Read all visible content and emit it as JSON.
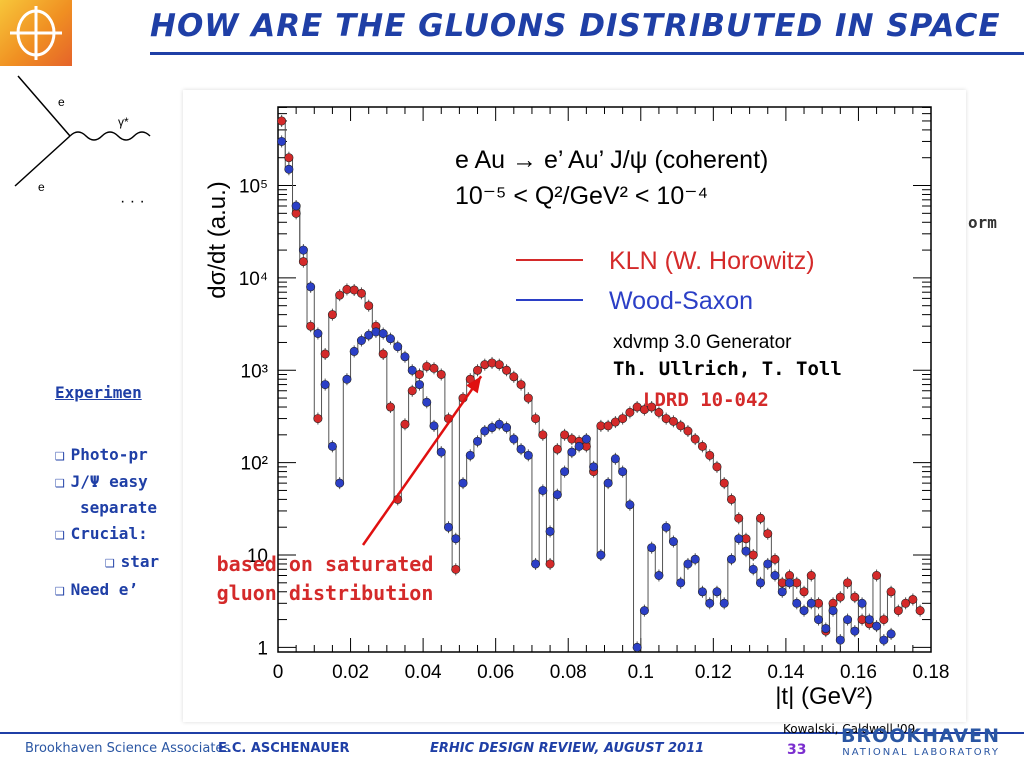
{
  "slide": {
    "title": "How are the gluons distributed in space",
    "background_fragments": {
      "experiment_heading": "Experimen",
      "bullets": [
        "Photo-pr",
        "J/Ψ easy",
        "separate",
        "Crucial:",
        "star",
        "Need e’"
      ],
      "right_fragment": "orm"
    }
  },
  "footer": {
    "left": "Brookhaven Science Associates",
    "author": "E.C. Aschenauer",
    "event": "eRHIC Design Review, August 2011",
    "page": "33",
    "ref": "Kowalski, Caldwell '09",
    "bnl_name": "BROOKHAVEN",
    "bnl_sub": "NATIONAL LABORATORY"
  },
  "chart_data": {
    "type": "scatter",
    "title_line1": "e Au → e’ Au’ J/ψ   (coherent)",
    "title_line2": "10⁻⁵ < Q²/GeV² < 10⁻⁴",
    "xlabel": "|t| (GeV²)",
    "ylabel": "dσ/dt (a.u.)",
    "xlim": [
      0,
      0.18
    ],
    "ylim_log10": [
      -0.05,
      5.85
    ],
    "y_scale": "log",
    "x_ticks": [
      "0",
      "0.02",
      "0.04",
      "0.06",
      "0.08",
      "0.1",
      "0.12",
      "0.14",
      "0.16",
      "0.18"
    ],
    "x_tick_values": [
      0,
      0.02,
      0.04,
      0.06,
      0.08,
      0.1,
      0.12,
      0.14,
      0.16,
      0.18
    ],
    "y_ticks": [
      "1",
      "10",
      "10²",
      "10³",
      "10⁴",
      "10⁵"
    ],
    "y_tick_values": [
      1,
      10,
      100,
      1000,
      10000,
      100000
    ],
    "legend_position": "top-right",
    "generator": "xdvmp 3.0  Generator",
    "credit": "Th. Ullrich, T. Toll",
    "ldrd": "LDRD 10-042",
    "annotation": [
      "based on saturated",
      "gluon distribution"
    ],
    "annotation_target": [
      0.056,
      1000
    ],
    "series": [
      {
        "name": "KLN (W. Horowitz)",
        "color": "#d42a2a",
        "x": [
          0.001,
          0.003,
          0.005,
          0.007,
          0.009,
          0.011,
          0.013,
          0.015,
          0.017,
          0.019,
          0.021,
          0.023,
          0.025,
          0.027,
          0.029,
          0.031,
          0.033,
          0.035,
          0.037,
          0.039,
          0.041,
          0.043,
          0.045,
          0.047,
          0.049,
          0.051,
          0.053,
          0.055,
          0.057,
          0.059,
          0.061,
          0.063,
          0.065,
          0.067,
          0.069,
          0.071,
          0.073,
          0.075,
          0.077,
          0.079,
          0.081,
          0.083,
          0.085,
          0.087,
          0.089,
          0.091,
          0.093,
          0.095,
          0.097,
          0.099,
          0.101,
          0.103,
          0.105,
          0.107,
          0.109,
          0.111,
          0.113,
          0.115,
          0.117,
          0.119,
          0.121,
          0.123,
          0.125,
          0.127,
          0.129,
          0.131,
          0.133,
          0.135,
          0.137,
          0.139,
          0.141,
          0.143,
          0.145,
          0.147,
          0.149,
          0.151,
          0.153,
          0.155,
          0.157,
          0.159,
          0.161,
          0.163,
          0.165,
          0.167,
          0.169,
          0.171,
          0.173,
          0.175,
          0.177
        ],
        "y": [
          500000,
          200000,
          50000,
          15000,
          3000,
          300,
          1500,
          4000,
          6500,
          7500,
          7400,
          6800,
          5000,
          3000,
          1500,
          400,
          40,
          260,
          600,
          900,
          1100,
          1050,
          900,
          300,
          7,
          500,
          800,
          1000,
          1150,
          1200,
          1150,
          1000,
          850,
          700,
          500,
          300,
          200,
          8,
          140,
          200,
          180,
          170,
          150,
          80,
          250,
          250,
          275,
          300,
          350,
          400,
          375,
          400,
          350,
          300,
          280,
          250,
          220,
          180,
          150,
          120,
          90,
          60,
          40,
          25,
          15,
          10,
          25,
          17,
          9,
          5,
          6,
          5,
          4,
          6,
          3,
          1.5,
          3,
          3.5,
          5,
          3.5,
          2,
          1.8,
          6,
          2,
          4,
          2.5,
          3,
          3.3,
          2.5
        ]
      },
      {
        "name": "Wood-Saxon",
        "color": "#2b3fc6",
        "x": [
          0.001,
          0.003,
          0.005,
          0.007,
          0.009,
          0.011,
          0.013,
          0.015,
          0.017,
          0.019,
          0.021,
          0.023,
          0.025,
          0.027,
          0.029,
          0.031,
          0.033,
          0.035,
          0.037,
          0.039,
          0.041,
          0.043,
          0.045,
          0.047,
          0.049,
          0.051,
          0.053,
          0.055,
          0.057,
          0.059,
          0.061,
          0.063,
          0.065,
          0.067,
          0.069,
          0.071,
          0.073,
          0.075,
          0.077,
          0.079,
          0.081,
          0.083,
          0.085,
          0.087,
          0.089,
          0.091,
          0.093,
          0.095,
          0.097,
          0.099,
          0.101,
          0.103,
          0.105,
          0.107,
          0.109,
          0.111,
          0.113,
          0.115,
          0.117,
          0.119,
          0.121,
          0.123,
          0.125,
          0.127,
          0.129,
          0.131,
          0.133,
          0.135,
          0.137,
          0.139,
          0.141,
          0.143,
          0.145,
          0.147,
          0.149,
          0.151,
          0.153,
          0.155,
          0.157,
          0.159,
          0.161,
          0.163,
          0.165,
          0.167,
          0.169
        ],
        "y": [
          300000,
          150000,
          60000,
          20000,
          8000,
          2500,
          700,
          150,
          60,
          800,
          1600,
          2100,
          2400,
          2600,
          2500,
          2200,
          1800,
          1400,
          1000,
          700,
          450,
          250,
          130,
          20,
          15,
          60,
          120,
          170,
          220,
          240,
          260,
          240,
          180,
          140,
          120,
          8,
          50,
          18,
          45,
          80,
          130,
          150,
          180,
          90,
          10,
          60,
          110,
          80,
          35,
          1,
          2.5,
          12,
          6,
          20,
          14,
          5,
          8,
          9,
          4,
          3,
          4,
          3,
          9,
          15,
          11,
          7,
          5,
          8,
          6,
          4,
          5,
          3,
          2.5,
          3,
          2,
          1.6,
          2.5,
          1.2,
          2,
          1.5,
          3,
          2,
          1.7,
          1.2,
          1.4
        ]
      }
    ]
  }
}
